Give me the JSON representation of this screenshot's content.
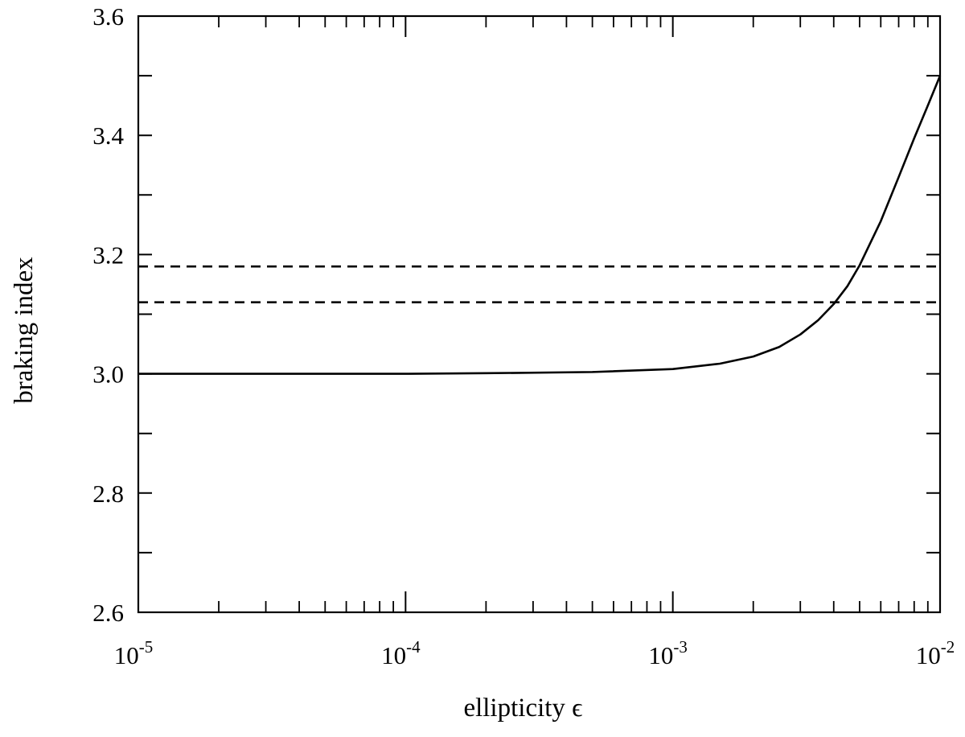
{
  "chart_data": {
    "type": "line",
    "title": "",
    "xlabel": "ellipticity ϵ",
    "ylabel": "braking index",
    "xscale": "log",
    "xlim": [
      1e-05,
      0.01
    ],
    "ylim": [
      2.6,
      3.6
    ],
    "x_ticks": [
      {
        "base": "10",
        "exp": "-5",
        "value": 1e-05
      },
      {
        "base": "10",
        "exp": "-4",
        "value": 0.0001
      },
      {
        "base": "10",
        "exp": "-3",
        "value": 0.001
      },
      {
        "base": "10",
        "exp": "-2",
        "value": 0.01
      }
    ],
    "y_ticks": [
      "2.6",
      "2.8",
      "3.0",
      "3.2",
      "3.4",
      "3.6"
    ],
    "grid": false,
    "legend": "none",
    "series": [
      {
        "style": "solid",
        "color": "#000000",
        "x": [
          1e-05,
          0.0001,
          0.0002,
          0.0005,
          0.001,
          0.0015,
          0.002,
          0.0025,
          0.003,
          0.0035,
          0.004,
          0.0045,
          0.005,
          0.006,
          0.007,
          0.008,
          0.009,
          0.01
        ],
        "y": [
          3.0,
          3.0,
          3.001,
          3.003,
          3.008,
          3.017,
          3.029,
          3.045,
          3.066,
          3.09,
          3.117,
          3.147,
          3.182,
          3.256,
          3.33,
          3.395,
          3.45,
          3.5
        ]
      },
      {
        "style": "dashed",
        "color": "#000000",
        "x": [
          1e-05,
          0.01
        ],
        "y": [
          3.18,
          3.18
        ]
      },
      {
        "style": "dashed",
        "color": "#000000",
        "x": [
          1e-05,
          0.01
        ],
        "y": [
          3.12,
          3.12
        ]
      }
    ]
  }
}
